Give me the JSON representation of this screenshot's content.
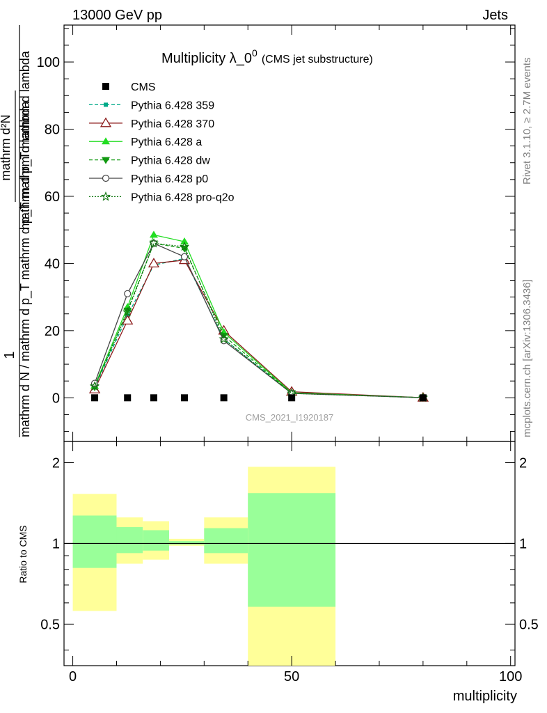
{
  "header": {
    "left": "13000 GeV pp",
    "right": "Jets"
  },
  "side_text": {
    "rivet": "Rivet 3.1.10, ≥ 2.7M events",
    "mcplots": "mcplots.cern.ch [arXiv:1306.3436]"
  },
  "watermark": "CMS_2021_I1920187",
  "chart_data": [
    {
      "type": "line",
      "title_main": "Multiplicity λ_0",
      "title_sup": "0",
      "title_paren": "(CMS jet substructure)",
      "ylabel_top_num": "1",
      "ylabel_top_den": "mathrm d N / mathrm d p_T mathrm d p_T mathrm d lambda",
      "ylabel_right_num": "mathrm d²N",
      "ylabel_right_den": "mathrm d p_T mathrm d lambda",
      "ylim": [
        -13,
        111
      ],
      "xlim": [
        -2,
        101
      ],
      "y_ticks": [
        0,
        20,
        40,
        60,
        80,
        100
      ],
      "legend_position": "top-left",
      "data": {
        "name": "CMS",
        "x": [
          5,
          12.5,
          18.5,
          25.5,
          34.5,
          50,
          80
        ],
        "y": [
          0,
          0,
          0,
          0,
          0,
          0,
          0
        ]
      },
      "series": [
        {
          "name": "Pythia 6.428 359",
          "color": "#00aa88",
          "marker": "square-small",
          "dash": "5,3",
          "y": [
            3.0,
            24.5,
            39.5,
            41.5,
            17.5,
            1.4,
            0.05
          ]
        },
        {
          "name": "Pythia 6.428 370",
          "color": "#8b1a1a",
          "marker": "triangle-open",
          "dash": "",
          "y": [
            2.5,
            23.0,
            40.0,
            41.0,
            20.0,
            1.8,
            0.05
          ]
        },
        {
          "name": "Pythia 6.428 a",
          "color": "#22dd22",
          "marker": "triangle-filled",
          "dash": "",
          "y": [
            3.5,
            27.0,
            48.5,
            46.5,
            19.5,
            1.5,
            0.05
          ]
        },
        {
          "name": "Pythia 6.428 dw",
          "color": "#119911",
          "marker": "triangle-down",
          "dash": "5,3",
          "y": [
            3.2,
            26.0,
            46.0,
            44.5,
            18.5,
            1.4,
            0.05
          ]
        },
        {
          "name": "Pythia 6.428 p0",
          "color": "#444444",
          "marker": "circle-open",
          "dash": "",
          "y": [
            4.3,
            31.0,
            46.0,
            42.0,
            17.0,
            1.3,
            0.05
          ]
        },
        {
          "name": "Pythia 6.428 pro-q2o",
          "color": "#117711",
          "marker": "star",
          "dash": "2,2",
          "y": [
            3.4,
            25.5,
            46.0,
            45.0,
            17.5,
            1.3,
            0.05
          ]
        }
      ]
    },
    {
      "type": "area",
      "ylabel": "Ratio to CMS",
      "xlabel": "multiplicity",
      "x_ticks": [
        0,
        50,
        100
      ],
      "y_ticks": [
        0.5,
        1,
        2
      ],
      "y_scale": "log",
      "ylim": [
        0.35,
        2.4
      ],
      "bands": [
        {
          "x_lo": 0,
          "x_hi": 10,
          "yellow": [
            0.56,
            1.53
          ],
          "green": [
            0.81,
            1.27
          ]
        },
        {
          "x_lo": 10,
          "x_hi": 16,
          "yellow": [
            0.84,
            1.25
          ],
          "green": [
            0.92,
            1.15
          ]
        },
        {
          "x_lo": 16,
          "x_hi": 22,
          "yellow": [
            0.87,
            1.21
          ],
          "green": [
            0.94,
            1.12
          ]
        },
        {
          "x_lo": 22,
          "x_hi": 30,
          "yellow": [
            0.98,
            1.04
          ],
          "green": [
            0.99,
            1.02
          ]
        },
        {
          "x_lo": 30,
          "x_hi": 40,
          "yellow": [
            0.84,
            1.25
          ],
          "green": [
            0.92,
            1.14
          ]
        },
        {
          "x_lo": 40,
          "x_hi": 60,
          "yellow": [
            0.3,
            1.93
          ],
          "green": [
            0.58,
            1.54
          ]
        }
      ]
    }
  ]
}
